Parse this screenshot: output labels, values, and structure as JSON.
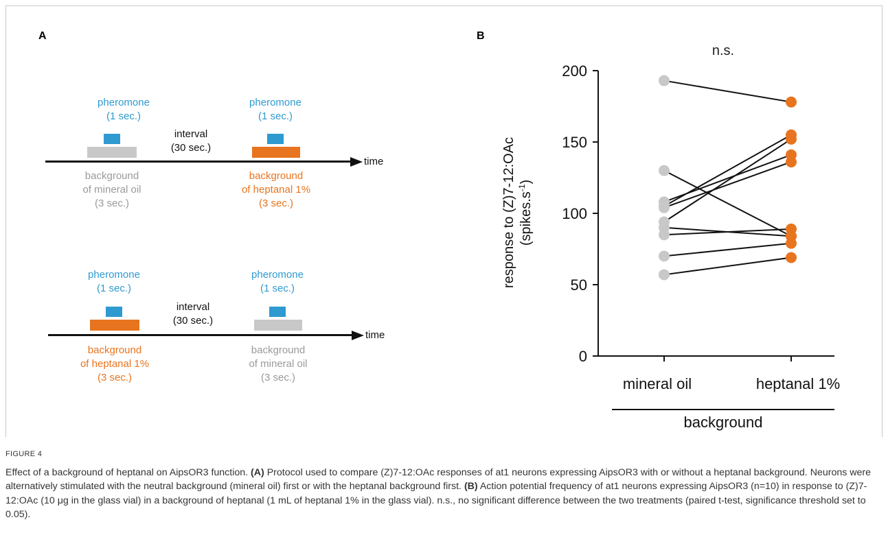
{
  "panel_a": {
    "letter": "A",
    "protocol1": {
      "pulse1_label_line1": "pheromone",
      "pulse1_label_line2": "(1 sec.)",
      "pulse2_label_line1": "pheromone",
      "pulse2_label_line2": "(1 sec.)",
      "interval_line1": "interval",
      "interval_line2": "(30 sec.)",
      "bg1_line1": "background",
      "bg1_line2": "of mineral oil",
      "bg1_line3": "(3 sec.)",
      "bg2_line1": "background",
      "bg2_line2": "of heptanal 1%",
      "bg2_line3": "(3 sec.)",
      "time_label": "time"
    },
    "protocol2": {
      "pulse1_label_line1": "pheromone",
      "pulse1_label_line2": "(1 sec.)",
      "pulse2_label_line1": "pheromone",
      "pulse2_label_line2": "(1 sec.)",
      "interval_line1": "interval",
      "interval_line2": "(30 sec.)",
      "bg1_line1": "background",
      "bg1_line2": "of heptanal 1%",
      "bg1_line3": "(3 sec.)",
      "bg2_line1": "background",
      "bg2_line2": "of mineral oil",
      "bg2_line3": "(3 sec.)",
      "time_label": "time"
    },
    "colors": {
      "pheromone": "#2e9ad0",
      "heptanal": "#e8741f",
      "mineral_oil": "#c8c8c8"
    }
  },
  "panel_b": {
    "letter": "B",
    "significance": "n.s.",
    "ylabel_line1": "response to (Z)7-12:OAc",
    "ylabel_line2": "(spikes.s",
    "ylabel_superscript": "-1",
    "ylabel_close": ")",
    "xgroup_label": "background"
  },
  "chart_data": {
    "type": "scatter",
    "categories": [
      "mineral oil",
      "heptanal 1%"
    ],
    "ylim": [
      0,
      200
    ],
    "yticks": [
      0,
      50,
      100,
      150,
      200
    ],
    "xlabel": "background",
    "ylabel": "response to (Z)7-12:OAc (spikes.s-1)",
    "title": "n.s.",
    "series": [
      {
        "values": [
          193,
          178
        ]
      },
      {
        "values": [
          130,
          84
        ]
      },
      {
        "values": [
          108,
          141
        ]
      },
      {
        "values": [
          105,
          155
        ]
      },
      {
        "values": [
          104,
          136
        ]
      },
      {
        "values": [
          94,
          152
        ]
      },
      {
        "values": [
          90,
          84
        ]
      },
      {
        "values": [
          85,
          89
        ]
      },
      {
        "values": [
          70,
          79
        ]
      },
      {
        "values": [
          57,
          69
        ]
      }
    ],
    "colors": {
      "mineral oil": "#c8c8c8",
      "heptanal 1%": "#e8741f"
    }
  },
  "caption": {
    "figure_label": "FIGURE 4",
    "title": "Effect of a background of heptanal on AipsOR3 function.",
    "a_label": "(A)",
    "a_text": "Protocol used to compare (Z)7-12:OAc responses of at1 neurons expressing AipsOR3 with or without a heptanal background. Neurons were alternatively stimulated with the neutral background (mineral oil) first or with the heptanal background first.",
    "b_label": "(B)",
    "b_text": "Action potential frequency of at1 neurons expressing AipsOR3 (n=10) in response to (Z)7-12:OAc (10 μg in the glass vial) in a background of heptanal (1 mL of heptanal 1% in the glass vial). n.s., no significant difference between the two treatments (paired t-test, significance threshold set to 0.05)."
  }
}
